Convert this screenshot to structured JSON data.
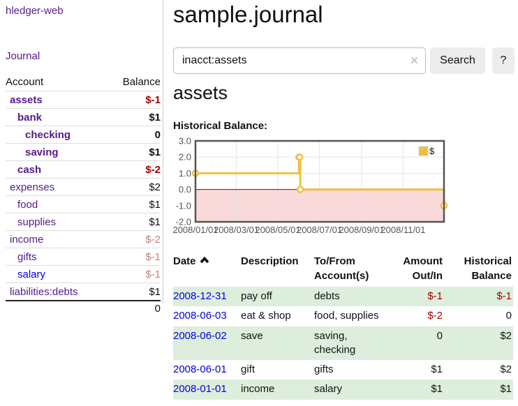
{
  "sidebar": {
    "brand": "hledger-web",
    "nav": {
      "journal": "Journal"
    },
    "accounts_table": {
      "headers": {
        "account": "Account",
        "balance": "Balance"
      },
      "rows": [
        {
          "name": "assets",
          "indent": 1,
          "bold": true,
          "balance": "$-1",
          "balance_tone": "negative-strong",
          "link_tone": "visited"
        },
        {
          "name": "bank",
          "indent": 2,
          "bold": true,
          "balance": "$1",
          "balance_tone": "normal",
          "link_tone": "visited"
        },
        {
          "name": "checking",
          "indent": 3,
          "bold": true,
          "balance": "0",
          "balance_tone": "normal",
          "link_tone": "visited"
        },
        {
          "name": "saving",
          "indent": 3,
          "bold": true,
          "balance": "$1",
          "balance_tone": "normal",
          "link_tone": "visited"
        },
        {
          "name": "cash",
          "indent": 2,
          "bold": true,
          "balance": "$-2",
          "balance_tone": "negative-strong",
          "link_tone": "visited"
        },
        {
          "name": "expenses",
          "indent": 1,
          "bold": false,
          "balance": "$2",
          "balance_tone": "normal",
          "link_tone": "visited"
        },
        {
          "name": "food",
          "indent": 2,
          "bold": false,
          "balance": "$1",
          "balance_tone": "normal",
          "link_tone": "visited"
        },
        {
          "name": "supplies",
          "indent": 2,
          "bold": false,
          "balance": "$1",
          "balance_tone": "normal",
          "link_tone": "visited"
        },
        {
          "name": "income",
          "indent": 1,
          "bold": false,
          "balance": "$-2",
          "balance_tone": "negative-soft",
          "link_tone": "visited"
        },
        {
          "name": "gifts",
          "indent": 2,
          "bold": false,
          "balance": "$-1",
          "balance_tone": "negative-soft",
          "link_tone": "visited"
        },
        {
          "name": "salary",
          "indent": 2,
          "bold": false,
          "balance": "$-1",
          "balance_tone": "negative-soft",
          "link_tone": "unvisited"
        },
        {
          "name": "liabilities:debts",
          "indent": 1,
          "bold": false,
          "balance": "$1",
          "balance_tone": "normal",
          "link_tone": "visited"
        }
      ],
      "total": "0"
    }
  },
  "main": {
    "title": "sample.journal",
    "search": {
      "value": "inacct:assets",
      "clear_icon": "×",
      "button": "Search",
      "help_button": "?"
    },
    "account_heading": "assets",
    "chart_label": "Historical Balance:"
  },
  "chart_data": {
    "type": "line",
    "step": true,
    "title": "Historical Balance",
    "series": [
      {
        "name": "$",
        "color": "#edc240",
        "points": [
          [
            "2008-01-01",
            1
          ],
          [
            "2008-06-01",
            2
          ],
          [
            "2008-06-02",
            2
          ],
          [
            "2008-06-03",
            0
          ],
          [
            "2008-12-31",
            -1
          ]
        ]
      }
    ],
    "x_range": [
      "2008-01-01",
      "2008-12-31"
    ],
    "ylim": [
      -2,
      3
    ],
    "y_ticks": [
      "3.0",
      "2.0",
      "1.0",
      "0.0",
      "-1.0",
      "-2.0"
    ],
    "x_ticks": [
      "2008/01/01",
      "2008/03/01",
      "2008/05/01",
      "2008/07/01",
      "2008/09/01",
      "2008/11/01"
    ],
    "legend": {
      "label": "$",
      "position": "top-right"
    },
    "grid": true,
    "negative_region_color": "#f9d9d9",
    "zero_line_color": "#8b0000"
  },
  "register": {
    "headers": {
      "date": "Date",
      "sort": "ascending",
      "sort_icon": "chevron-up-icon",
      "description": "Description",
      "accounts": "To/From Account(s)",
      "amount": "Amount Out/In",
      "balance": "Historical Balance"
    },
    "rows": [
      {
        "date": "2008-12-31",
        "description": "pay off",
        "accounts": "debts",
        "amount": "$-1",
        "amount_tone": "negative",
        "balance": "$-1",
        "balance_tone": "negative"
      },
      {
        "date": "2008-06-03",
        "description": "eat & shop",
        "accounts": "food, supplies",
        "amount": "$-2",
        "amount_tone": "negative",
        "balance": "0",
        "balance_tone": "normal"
      },
      {
        "date": "2008-06-02",
        "description": "save",
        "accounts": "saving, checking",
        "amount": "0",
        "amount_tone": "normal",
        "balance": "$2",
        "balance_tone": "normal"
      },
      {
        "date": "2008-06-01",
        "description": "gift",
        "accounts": "gifts",
        "amount": "$1",
        "amount_tone": "normal",
        "balance": "$2",
        "balance_tone": "normal"
      },
      {
        "date": "2008-01-01",
        "description": "income",
        "accounts": "salary",
        "amount": "$1",
        "amount_tone": "normal",
        "balance": "$1",
        "balance_tone": "normal"
      }
    ]
  }
}
